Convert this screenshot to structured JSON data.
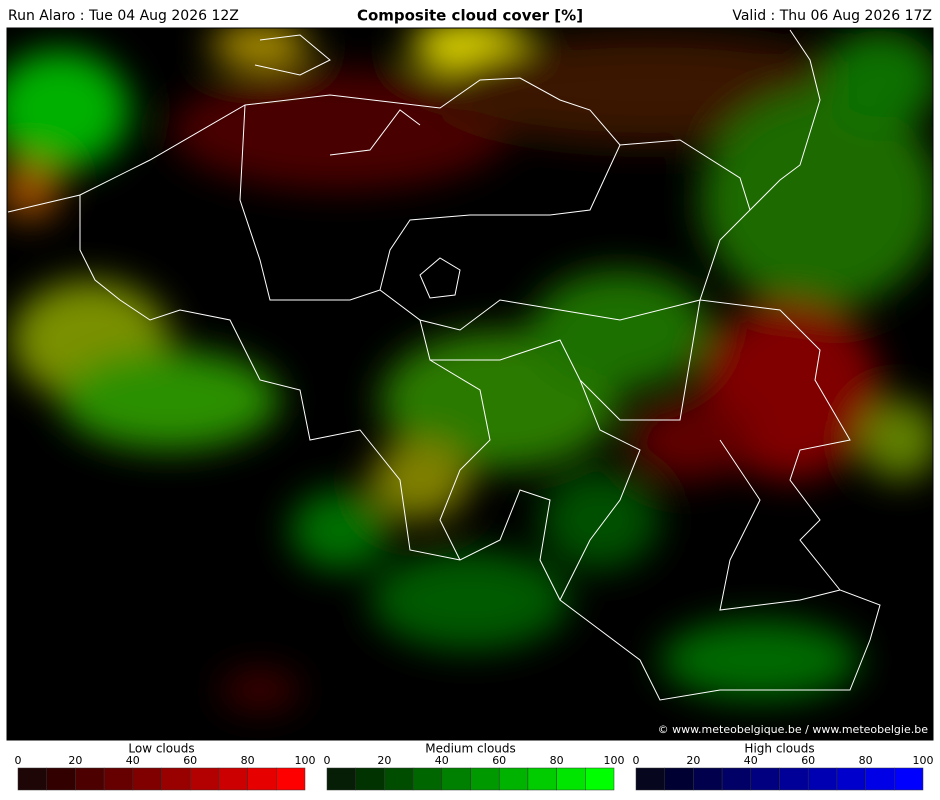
{
  "header": {
    "run": "Run Alaro : Tue 04 Aug 2026 12Z",
    "title": "Composite cloud cover [%]",
    "valid": "Valid : Thu 06 Aug 2026 17Z"
  },
  "map": {
    "credit": "© www.meteobelgique.be / www.meteobelgie.be"
  },
  "legends": [
    {
      "title": "Low clouds",
      "ticks": [
        0,
        20,
        40,
        60,
        80,
        100
      ],
      "colors": [
        "#1e0606",
        "#330000",
        "#4d0000",
        "#660000",
        "#800000",
        "#990000",
        "#b30000",
        "#cc0000",
        "#e60000",
        "#ff0000"
      ]
    },
    {
      "title": "Medium clouds",
      "ticks": [
        0,
        20,
        40,
        60,
        80,
        100
      ],
      "colors": [
        "#061e06",
        "#003300",
        "#004d00",
        "#006600",
        "#008000",
        "#009900",
        "#00b300",
        "#00cc00",
        "#00e600",
        "#00ff00"
      ]
    },
    {
      "title": "High clouds",
      "ticks": [
        0,
        20,
        40,
        60,
        80,
        100
      ],
      "colors": [
        "#06061e",
        "#000033",
        "#00004d",
        "#000066",
        "#000080",
        "#000099",
        "#0000b3",
        "#0000cc",
        "#0000e6",
        "#0000ff"
      ]
    }
  ]
}
